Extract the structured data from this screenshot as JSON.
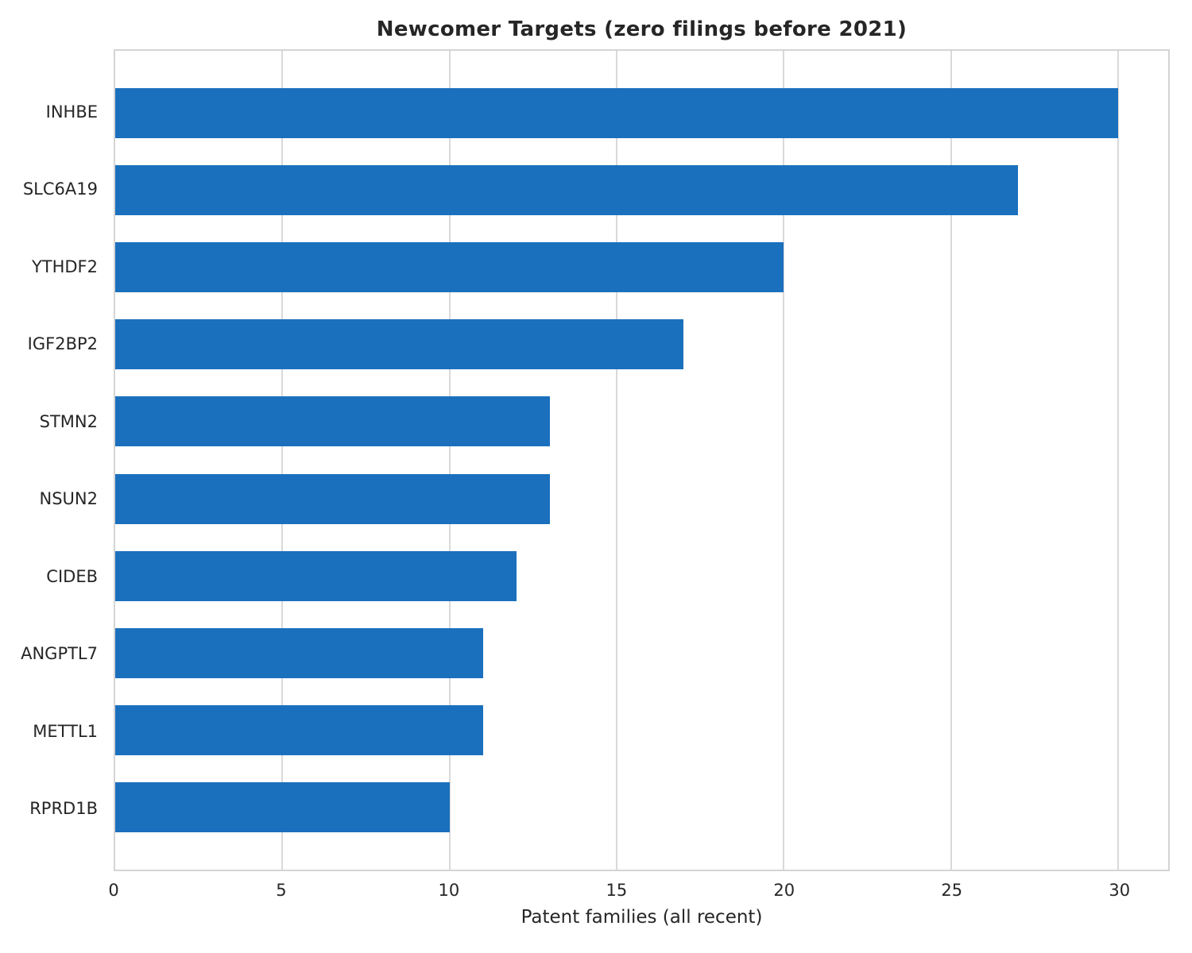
{
  "chart_data": {
    "type": "bar",
    "orientation": "horizontal",
    "title": "Newcomer Targets (zero filings before 2021)",
    "categories": [
      "INHBE",
      "SLC6A19",
      "YTHDF2",
      "IGF2BP2",
      "STMN2",
      "NSUN2",
      "CIDEB",
      "ANGPTL7",
      "METTL1",
      "RPRD1B"
    ],
    "values": [
      30,
      27,
      20,
      17,
      13,
      13,
      12,
      11,
      11,
      10
    ],
    "xlabel": "Patent families (all recent)",
    "ylabel": "",
    "xlim": [
      0,
      31.5
    ],
    "xticks": [
      0,
      5,
      10,
      15,
      20,
      25,
      30
    ],
    "grid": true,
    "legend": "none",
    "bar_color": "#1b70bd",
    "grid_color": "#d9d9d9",
    "border_color": "#d4d4d4",
    "text_color": "#262626",
    "background_color": "#ffffff"
  }
}
